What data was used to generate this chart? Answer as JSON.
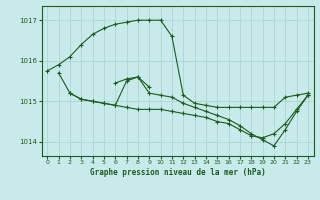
{
  "title": "Graphe pression niveau de la mer (hPa)",
  "bg_color": "#c8eaea",
  "grid_color": "#a8d0d0",
  "line_color": "#1a5c1a",
  "ylim": [
    1013.65,
    1017.35
  ],
  "yticks": [
    1014,
    1015,
    1016,
    1017
  ],
  "xlim": [
    -0.5,
    23.5
  ],
  "xticks": [
    0,
    1,
    2,
    3,
    4,
    5,
    6,
    7,
    8,
    9,
    10,
    11,
    12,
    13,
    14,
    15,
    16,
    17,
    18,
    19,
    20,
    21,
    22,
    23
  ],
  "series": [
    {
      "x": [
        0,
        1,
        2,
        3,
        4,
        5,
        6,
        7,
        8,
        9,
        10,
        11,
        12,
        13,
        14,
        15,
        16,
        17,
        18,
        19,
        20,
        21,
        22,
        23
      ],
      "y": [
        1015.75,
        1015.9,
        1016.1,
        1016.4,
        1016.65,
        1016.8,
        1016.9,
        1016.95,
        1017.0,
        1017.0,
        1017.0,
        1016.6,
        1015.15,
        1014.95,
        1014.9,
        1014.85,
        1014.85,
        1014.85,
        1014.85,
        1014.85,
        1014.85,
        1015.1,
        1015.15,
        1015.2
      ]
    },
    {
      "x": [
        1,
        2,
        3,
        4,
        5,
        6,
        7,
        8,
        9,
        10,
        11,
        12,
        13,
        14,
        15,
        16,
        17,
        18,
        19,
        20,
        21,
        22,
        23
      ],
      "y": [
        1015.7,
        1015.2,
        1015.05,
        1015.0,
        1014.95,
        1014.9,
        1014.85,
        1014.8,
        1014.8,
        1014.8,
        1014.75,
        1014.7,
        1014.65,
        1014.6,
        1014.5,
        1014.45,
        1014.3,
        1014.15,
        1014.1,
        1014.2,
        1014.45,
        1014.8,
        1015.15
      ]
    },
    {
      "x": [
        2,
        3,
        4,
        5,
        6,
        7,
        8,
        9,
        10,
        11,
        12,
        13,
        14,
        15,
        16,
        17,
        18,
        19,
        20,
        21,
        22,
        23
      ],
      "y": [
        1015.2,
        1015.05,
        1015.0,
        1014.95,
        1014.9,
        1015.5,
        1015.6,
        1015.2,
        1015.15,
        1015.1,
        1014.95,
        1014.85,
        1014.75,
        1014.65,
        1014.55,
        1014.4,
        1014.2,
        1014.05,
        1013.9,
        1014.3,
        1014.75,
        1015.15
      ]
    },
    {
      "x": [
        6,
        7,
        8,
        9
      ],
      "y": [
        1015.45,
        1015.55,
        1015.6,
        1015.35
      ]
    }
  ]
}
